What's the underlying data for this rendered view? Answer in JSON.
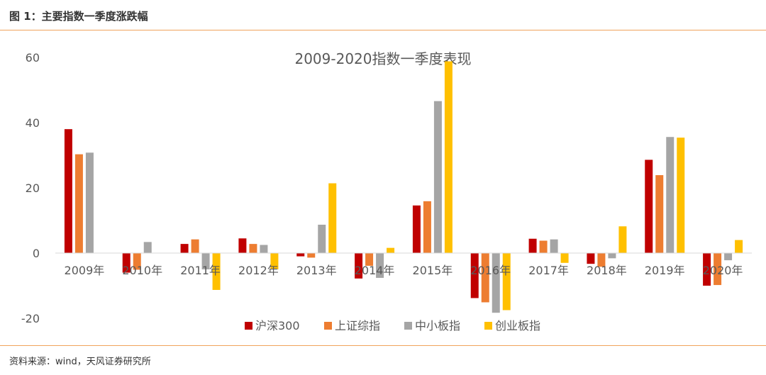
{
  "header": {
    "figure_title": "图 1：主要指数一季度涨跌幅"
  },
  "footer": {
    "source": "资料来源：wind，天风证券研究所"
  },
  "colors": {
    "accent_rule": "#f0a35c"
  },
  "chart_data": {
    "type": "bar",
    "title": "2009-2020指数一季度表现",
    "xlabel": "",
    "ylabel": "",
    "ylim": [
      -20,
      60
    ],
    "yticks": [
      -20,
      0,
      20,
      40,
      60
    ],
    "grid": false,
    "legend_position": "bottom",
    "categories": [
      "2009年",
      "2010年",
      "2011年",
      "2012年",
      "2013年",
      "2014年",
      "2015年",
      "2016年",
      "2017年",
      "2018年",
      "2019年",
      "2020年"
    ],
    "series": [
      {
        "name": "沪深300",
        "color": "#c00000",
        "values": [
          38.0,
          -6.0,
          2.8,
          4.5,
          -1.0,
          -7.8,
          14.6,
          -13.8,
          4.4,
          -3.3,
          28.6,
          -10.0
        ]
      },
      {
        "name": "上证综指",
        "color": "#ed7d31",
        "values": [
          30.3,
          -5.1,
          4.2,
          2.8,
          -1.4,
          -3.9,
          15.9,
          -15.1,
          3.8,
          -4.2,
          23.9,
          -9.8
        ]
      },
      {
        "name": "中小板指",
        "color": "#a5a5a5",
        "values": [
          30.8,
          3.4,
          -5.0,
          2.5,
          8.7,
          -7.6,
          46.6,
          -18.3,
          4.2,
          -1.6,
          35.6,
          -2.2
        ]
      },
      {
        "name": "创业板指",
        "color": "#ffc000",
        "values": [
          null,
          null,
          -11.3,
          -5.0,
          21.4,
          1.6,
          58.8,
          -17.5,
          -3.0,
          8.2,
          35.4,
          4.0
        ]
      }
    ]
  }
}
